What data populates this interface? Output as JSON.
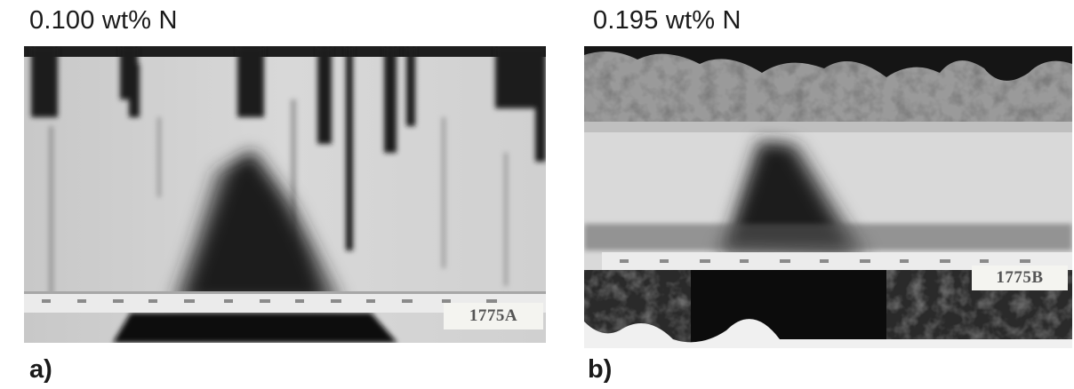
{
  "figure": {
    "panels": [
      {
        "id": "a",
        "title": "0.100 wt% N",
        "label": "a)",
        "specimen_id": "1775A"
      },
      {
        "id": "b",
        "title": "0.195 wt% N",
        "label": "b)",
        "specimen_id": "1775B"
      }
    ]
  }
}
